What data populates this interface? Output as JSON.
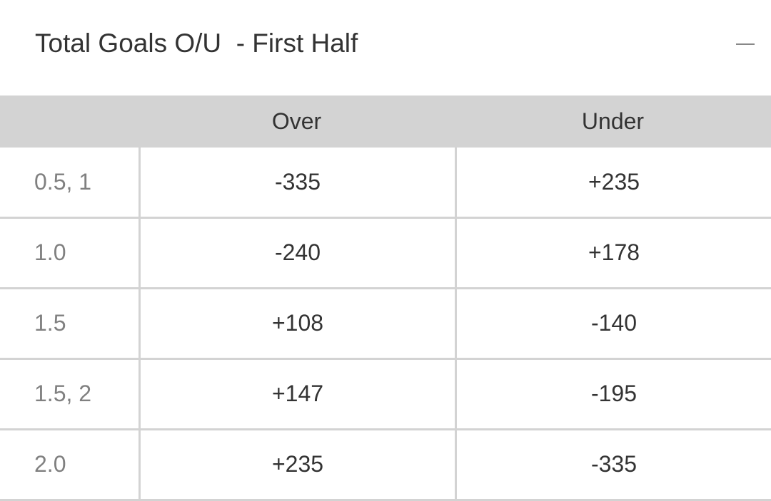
{
  "market": {
    "title": "Total Goals O/U  - First Half",
    "collapse_icon": "minus-icon",
    "columns": [
      "",
      "Over",
      "Under"
    ],
    "rows": [
      {
        "line": "0.5, 1",
        "over": "-335",
        "under": "+235"
      },
      {
        "line": "1.0",
        "over": "-240",
        "under": "+178"
      },
      {
        "line": "1.5",
        "over": "+108",
        "under": "-140"
      },
      {
        "line": "1.5, 2",
        "over": "+147",
        "under": "-195"
      },
      {
        "line": "2.0",
        "over": "+235",
        "under": "-335"
      }
    ]
  },
  "colors": {
    "header_bg": "#d3d3d3",
    "text": "#333333",
    "line_text": "#808080"
  }
}
